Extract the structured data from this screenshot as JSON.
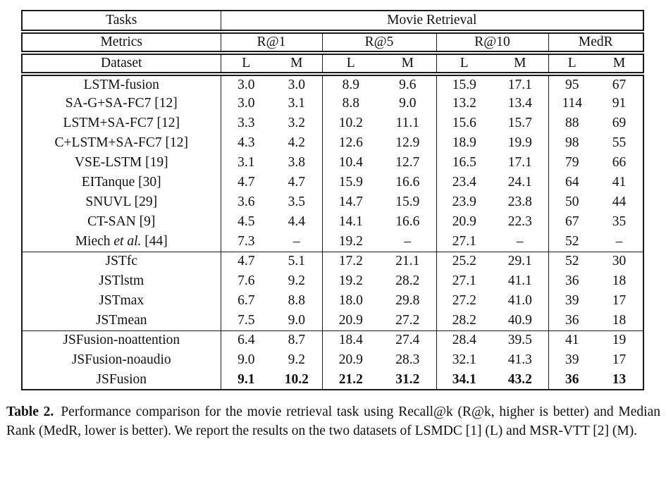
{
  "page": {
    "background": "#ffffff",
    "text_color": "#111111"
  },
  "table": {
    "header": {
      "row1": {
        "col1": "Tasks",
        "span": "Movie Retrieval"
      },
      "row2": {
        "col1": "Metrics",
        "groups": [
          "R@1",
          "R@5",
          "R@10",
          "MedR"
        ]
      },
      "row3": {
        "col1": "Dataset",
        "cols": [
          "L",
          "M"
        ]
      }
    },
    "groups": [
      {
        "rows": [
          {
            "label": "LSTM-fusion",
            "label_italic": "",
            "label_suffix": "",
            "values": [
              "3.0",
              "3.0",
              "8.9",
              "9.6",
              "15.9",
              "17.1",
              "95",
              "67"
            ],
            "bold": false
          },
          {
            "label": "SA-G+SA-FC7 [12]",
            "label_italic": "",
            "label_suffix": "",
            "values": [
              "3.0",
              "3.1",
              "8.8",
              "9.0",
              "13.2",
              "13.4",
              "114",
              "91"
            ],
            "bold": false
          },
          {
            "label": "LSTM+SA-FC7 [12]",
            "label_italic": "",
            "label_suffix": "",
            "values": [
              "3.3",
              "3.2",
              "10.2",
              "11.1",
              "15.6",
              "15.7",
              "88",
              "69"
            ],
            "bold": false
          },
          {
            "label": "C+LSTM+SA-FC7 [12]",
            "label_italic": "",
            "label_suffix": "",
            "values": [
              "4.3",
              "4.2",
              "12.6",
              "12.9",
              "18.9",
              "19.9",
              "98",
              "55"
            ],
            "bold": false
          },
          {
            "label": "VSE-LSTM [19]",
            "label_italic": "",
            "label_suffix": "",
            "values": [
              "3.1",
              "3.8",
              "10.4",
              "12.7",
              "16.5",
              "17.1",
              "79",
              "66"
            ],
            "bold": false
          },
          {
            "label": "EITanque [30]",
            "label_italic": "",
            "label_suffix": "",
            "values": [
              "4.7",
              "4.7",
              "15.9",
              "16.6",
              "23.4",
              "24.1",
              "64",
              "41"
            ],
            "bold": false
          },
          {
            "label": "SNUVL [29]",
            "label_italic": "",
            "label_suffix": "",
            "values": [
              "3.6",
              "3.5",
              "14.7",
              "15.9",
              "23.9",
              "23.8",
              "50",
              "44"
            ],
            "bold": false
          },
          {
            "label": "CT-SAN [9]",
            "label_italic": "",
            "label_suffix": "",
            "values": [
              "4.5",
              "4.4",
              "14.1",
              "16.6",
              "20.9",
              "22.3",
              "67",
              "35"
            ],
            "bold": false
          },
          {
            "label": "Miech ",
            "label_italic": "et al.",
            "label_suffix": " [44]",
            "values": [
              "7.3",
              "–",
              "19.2",
              "–",
              "27.1",
              "–",
              "52",
              "–"
            ],
            "bold": false
          }
        ]
      },
      {
        "rows": [
          {
            "label": "JSTfc",
            "label_italic": "",
            "label_suffix": "",
            "values": [
              "4.7",
              "5.1",
              "17.2",
              "21.1",
              "25.2",
              "29.1",
              "52",
              "30"
            ],
            "bold": false
          },
          {
            "label": "JSTlstm",
            "label_italic": "",
            "label_suffix": "",
            "values": [
              "7.6",
              "9.2",
              "19.2",
              "28.2",
              "27.1",
              "41.1",
              "36",
              "18"
            ],
            "bold": false
          },
          {
            "label": "JSTmax",
            "label_italic": "",
            "label_suffix": "",
            "values": [
              "6.7",
              "8.8",
              "18.0",
              "29.8",
              "27.2",
              "41.0",
              "39",
              "17"
            ],
            "bold": false
          },
          {
            "label": "JSTmean",
            "label_italic": "",
            "label_suffix": "",
            "values": [
              "7.5",
              "9.0",
              "20.9",
              "27.2",
              "28.2",
              "40.9",
              "36",
              "18"
            ],
            "bold": false
          }
        ]
      },
      {
        "rows": [
          {
            "label": "JSFusion-noattention",
            "label_italic": "",
            "label_suffix": "",
            "values": [
              "6.4",
              "8.7",
              "18.4",
              "27.4",
              "28.4",
              "39.5",
              "41",
              "19"
            ],
            "bold": false
          },
          {
            "label": "JSFusion-noaudio",
            "label_italic": "",
            "label_suffix": "",
            "values": [
              "9.0",
              "9.2",
              "20.9",
              "28.3",
              "32.1",
              "41.3",
              "39",
              "17"
            ],
            "bold": false
          },
          {
            "label": "JSFusion",
            "label_italic": "",
            "label_suffix": "",
            "values": [
              "9.1",
              "10.2",
              "21.2",
              "31.2",
              "34.1",
              "43.2",
              "36",
              "13"
            ],
            "bold": true
          }
        ]
      }
    ]
  },
  "caption": {
    "label": "Table 2.",
    "text": "Performance comparison for the movie retrieval task using Recall@k (R@k, higher is better) and Median Rank (MedR, lower is better). We report the results on the two datasets of LSMDC [1] (L) and MSR-VTT [2] (M)."
  }
}
